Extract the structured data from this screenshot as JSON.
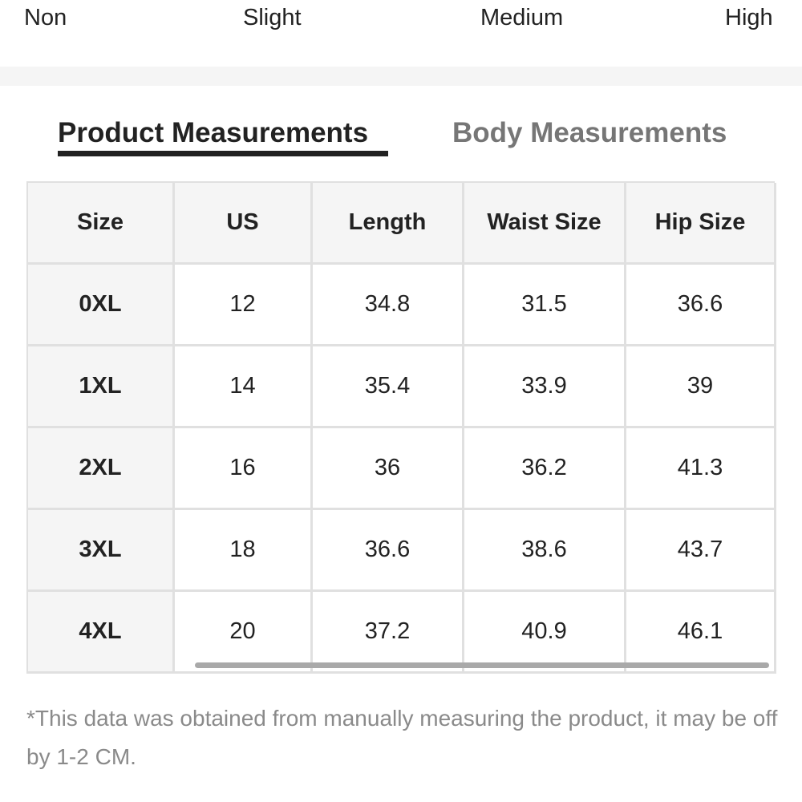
{
  "stretch": [
    "Non",
    "Slight",
    "Medium",
    "High"
  ],
  "tabs": {
    "active": "Product Measurements",
    "inactive": "Body Measurements"
  },
  "table": {
    "headers": [
      "Size",
      "US",
      "Length",
      "Waist Size",
      "Hip Size"
    ],
    "rows": [
      [
        "0XL",
        12,
        34.8,
        31.5,
        36.6
      ],
      [
        "1XL",
        14,
        35.4,
        33.9,
        39
      ],
      [
        "2XL",
        16,
        36,
        36.2,
        41.3
      ],
      [
        "3XL",
        18,
        36.6,
        38.6,
        43.7
      ],
      [
        "4XL",
        20,
        37.2,
        40.9,
        46.1
      ]
    ]
  },
  "footnote": "*This data was obtained from manually measuring the product, it may be off by 1-2 CM."
}
